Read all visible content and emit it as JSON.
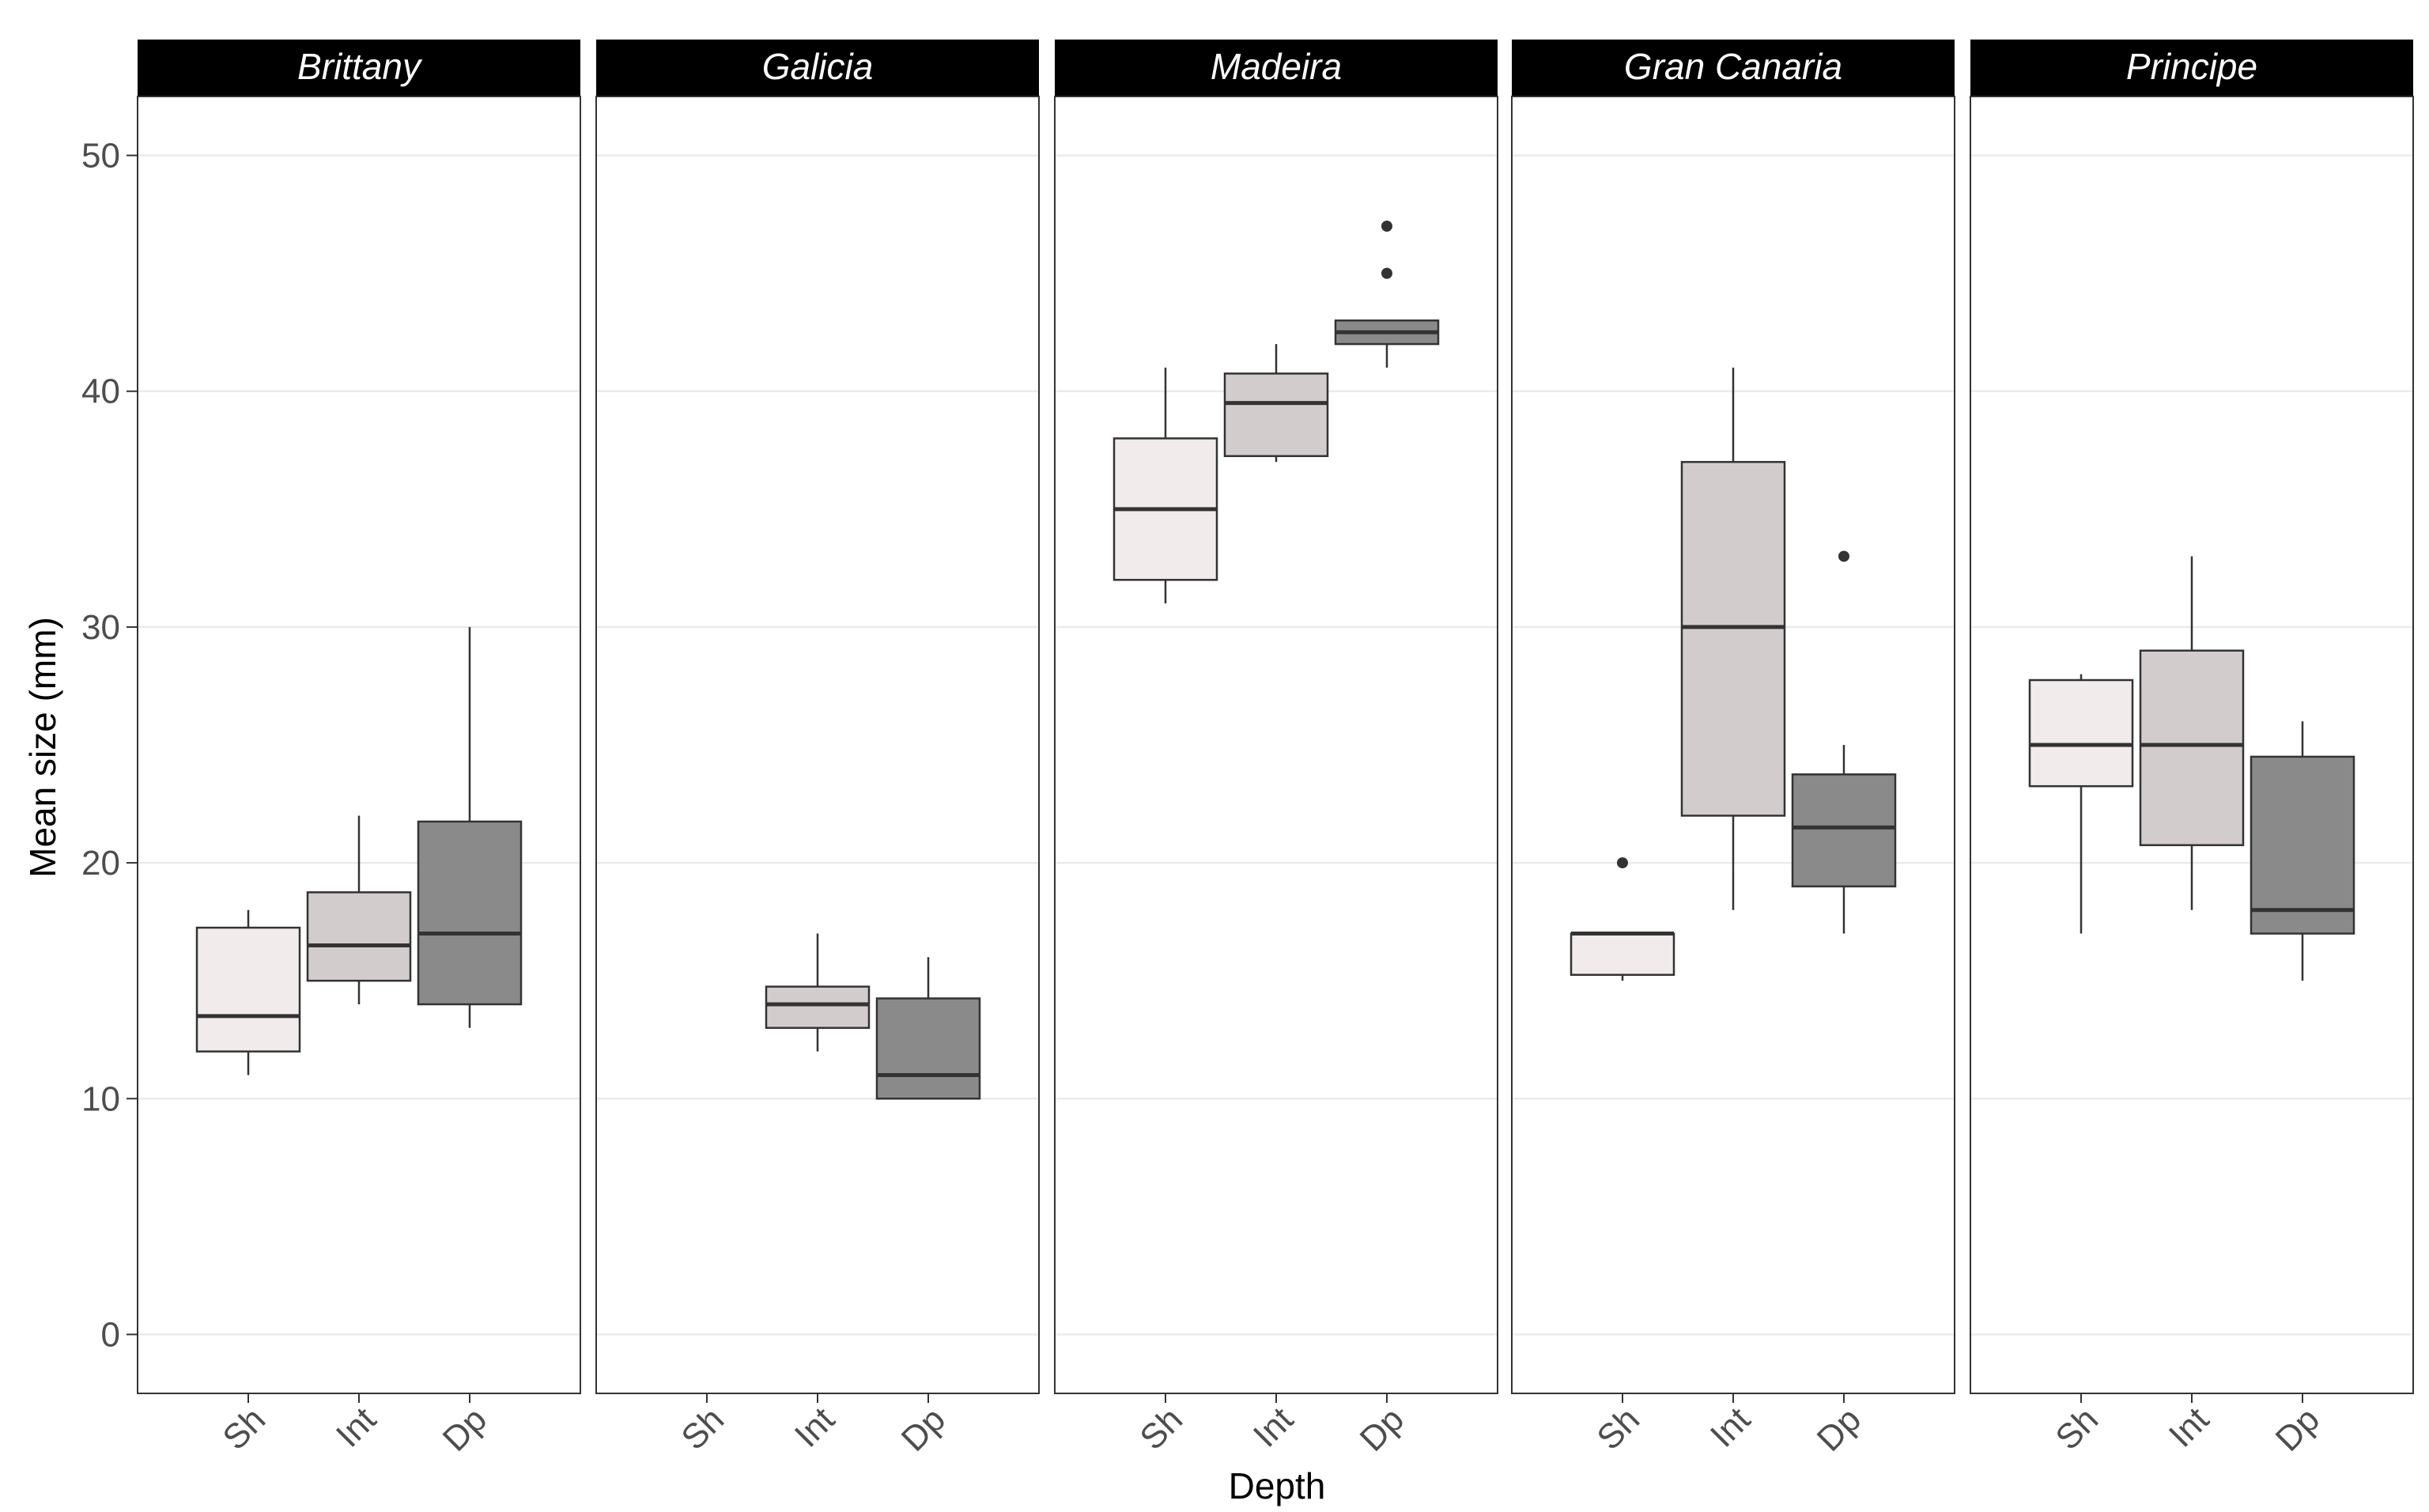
{
  "chart_data": {
    "type": "boxplot",
    "title": "",
    "xlabel": "Depth",
    "ylabel": "Mean size (mm)",
    "ylim": [
      -2.5,
      52.5
    ],
    "yticks": [
      0,
      10,
      20,
      30,
      40,
      50
    ],
    "categories": [
      "Sh",
      "Int",
      "Dp"
    ],
    "category_colors": {
      "Sh": "#f2ebec",
      "Int": "#d3cccd",
      "Dp": "#8a8a8a"
    },
    "panels": [
      {
        "name": "Brittany",
        "boxes": [
          {
            "category": "Sh",
            "min": 11,
            "q1": 12,
            "median": 13.5,
            "q3": 17.25,
            "max": 18,
            "outliers": []
          },
          {
            "category": "Int",
            "min": 14,
            "q1": 15,
            "median": 16.5,
            "q3": 18.75,
            "max": 22,
            "outliers": []
          },
          {
            "category": "Dp",
            "min": 13,
            "q1": 14,
            "median": 17,
            "q3": 21.75,
            "max": 30,
            "outliers": []
          }
        ]
      },
      {
        "name": "Galicia",
        "boxes": [
          {
            "category": "Int",
            "min": 12,
            "q1": 13,
            "median": 14,
            "q3": 14.75,
            "max": 17,
            "outliers": []
          },
          {
            "category": "Dp",
            "min": 10,
            "q1": 10,
            "median": 11,
            "q3": 14.25,
            "max": 16,
            "outliers": []
          }
        ]
      },
      {
        "name": "Madeira",
        "boxes": [
          {
            "category": "Sh",
            "min": 31,
            "q1": 32,
            "median": 35,
            "q3": 38,
            "max": 41,
            "outliers": []
          },
          {
            "category": "Int",
            "min": 37,
            "q1": 37.25,
            "median": 39.5,
            "q3": 40.75,
            "max": 42,
            "outliers": []
          },
          {
            "category": "Dp",
            "min": 41,
            "q1": 42,
            "median": 42.5,
            "q3": 43,
            "max": 43,
            "outliers": [
              45,
              47
            ]
          }
        ]
      },
      {
        "name": "Gran Canaria",
        "boxes": [
          {
            "category": "Sh",
            "min": 15,
            "q1": 15.25,
            "median": 17,
            "q3": 17,
            "max": 17,
            "outliers": [
              20
            ]
          },
          {
            "category": "Int",
            "min": 18,
            "q1": 22,
            "median": 30,
            "q3": 37,
            "max": 41,
            "outliers": []
          },
          {
            "category": "Dp",
            "min": 17,
            "q1": 19,
            "median": 21.5,
            "q3": 23.75,
            "max": 25,
            "outliers": [
              33
            ]
          }
        ]
      },
      {
        "name": "Principe",
        "boxes": [
          {
            "category": "Sh",
            "min": 17,
            "q1": 23.25,
            "median": 25,
            "q3": 27.75,
            "max": 28,
            "outliers": []
          },
          {
            "category": "Int",
            "min": 18,
            "q1": 20.75,
            "median": 25,
            "q3": 29,
            "max": 33,
            "outliers": []
          },
          {
            "category": "Dp",
            "min": 15,
            "q1": 17,
            "median": 18,
            "q3": 24.5,
            "max": 26,
            "outliers": []
          }
        ]
      }
    ]
  }
}
